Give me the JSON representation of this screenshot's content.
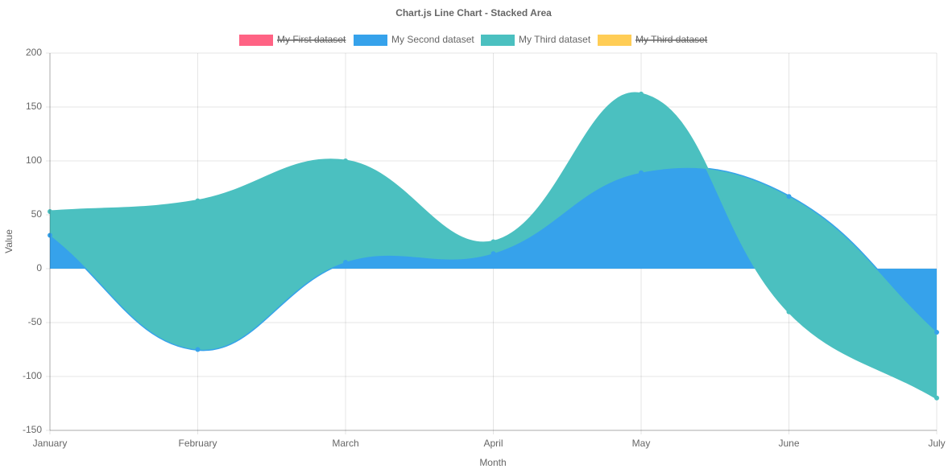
{
  "chart_data": {
    "type": "line",
    "stacked": true,
    "fill": true,
    "title": "Chart.js Line Chart - Stacked Area",
    "x_label": "Month",
    "y_label": "Value",
    "categories": [
      "January",
      "February",
      "March",
      "April",
      "May",
      "June",
      "July"
    ],
    "series": [
      {
        "name": "My First dataset",
        "color": "#ff6384",
        "hidden": true,
        "values": [
          null,
          null,
          null,
          null,
          null,
          null,
          null
        ]
      },
      {
        "name": "My Second dataset",
        "color": "#36a2eb",
        "values": [
          31,
          -75,
          6,
          14,
          89,
          67,
          -59
        ]
      },
      {
        "name": "My Third dataset",
        "color": "#4bc0c0",
        "values": [
          22,
          138,
          94,
          11,
          73,
          -107,
          -61
        ]
      },
      {
        "name": "My Third dataset",
        "color": "#ffcd56",
        "hidden": true,
        "values": [
          null,
          null,
          null,
          null,
          null,
          null,
          null
        ]
      }
    ],
    "ylim": [
      -150,
      200
    ],
    "yticks": [
      -150,
      -100,
      -50,
      0,
      50,
      100,
      150,
      200
    ],
    "grid": true,
    "legend": "top"
  }
}
